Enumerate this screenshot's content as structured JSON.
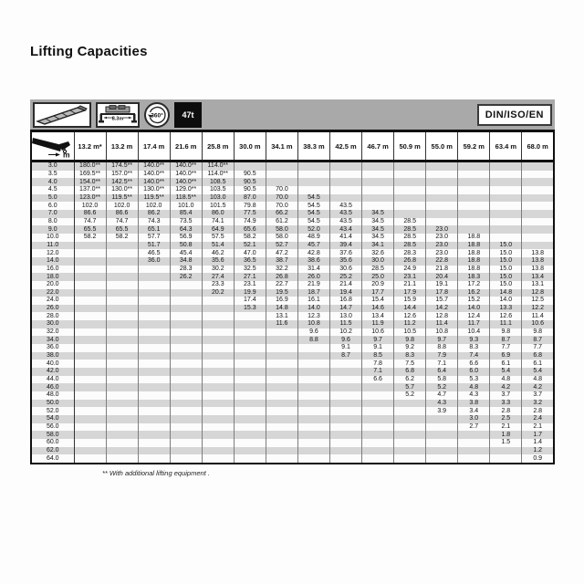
{
  "title": "Lifting Capacities",
  "standard_label": "DIN/ISO/EN",
  "icons": {
    "boom": "telescopic-boom-icon",
    "outriggers": "outriggers-icon",
    "outrigger_width_label": "8.3m",
    "rotation_label": "360°",
    "counterweight_label": "47t",
    "radius_icon": "boom-radius-icon"
  },
  "table": {
    "radius_unit": "m",
    "columns": [
      "13.2 m*",
      "13.2 m",
      "17.4 m",
      "21.6 m",
      "25.8 m",
      "30.0 m",
      "34.1 m",
      "38.3 m",
      "42.5 m",
      "46.7 m",
      "50.9 m",
      "55.0 m",
      "59.2 m",
      "63.4 m",
      "68.0 m"
    ],
    "rows": [
      {
        "radius": "3.0",
        "values": [
          "180.0**",
          "174.5**",
          "140.0**",
          "140.0**",
          "114.0**",
          "",
          "",
          "",
          "",
          "",
          "",
          "",
          "",
          "",
          ""
        ]
      },
      {
        "radius": "3.5",
        "values": [
          "169.5**",
          "157.0**",
          "140.0**",
          "140.0**",
          "114.0**",
          "90.5",
          "",
          "",
          "",
          "",
          "",
          "",
          "",
          "",
          ""
        ]
      },
      {
        "radius": "4.0",
        "values": [
          "154.0**",
          "142.5**",
          "140.0**",
          "140.0**",
          "108.5",
          "90.5",
          "",
          "",
          "",
          "",
          "",
          "",
          "",
          "",
          ""
        ]
      },
      {
        "radius": "4.5",
        "values": [
          "137.0**",
          "130.0**",
          "130.0**",
          "129.0**",
          "103.5",
          "90.5",
          "70.0",
          "",
          "",
          "",
          "",
          "",
          "",
          "",
          ""
        ]
      },
      {
        "radius": "5.0",
        "values": [
          "123.0**",
          "119.5**",
          "119.5**",
          "118.5**",
          "103.0",
          "87.0",
          "70.0",
          "54.5",
          "",
          "",
          "",
          "",
          "",
          "",
          ""
        ]
      },
      {
        "radius": "6.0",
        "values": [
          "102.0",
          "102.0",
          "102.0",
          "101.0",
          "101.5",
          "79.8",
          "70.0",
          "54.5",
          "43.5",
          "",
          "",
          "",
          "",
          "",
          ""
        ]
      },
      {
        "radius": "7.0",
        "values": [
          "86.6",
          "86.6",
          "86.2",
          "85.4",
          "86.0",
          "77.5",
          "66.2",
          "54.5",
          "43.5",
          "34.5",
          "",
          "",
          "",
          "",
          ""
        ]
      },
      {
        "radius": "8.0",
        "values": [
          "74.7",
          "74.7",
          "74.3",
          "73.5",
          "74.1",
          "74.9",
          "61.2",
          "54.5",
          "43.5",
          "34.5",
          "28.5",
          "",
          "",
          "",
          ""
        ]
      },
      {
        "radius": "9.0",
        "values": [
          "65.5",
          "65.5",
          "65.1",
          "64.3",
          "64.9",
          "65.6",
          "58.0",
          "52.0",
          "43.4",
          "34.5",
          "28.5",
          "23.0",
          "",
          "",
          ""
        ]
      },
      {
        "radius": "10.0",
        "values": [
          "58.2",
          "58.2",
          "57.7",
          "56.9",
          "57.5",
          "58.2",
          "58.0",
          "48.9",
          "41.4",
          "34.5",
          "28.5",
          "23.0",
          "18.8",
          "",
          ""
        ]
      },
      {
        "radius": "11.0",
        "values": [
          "",
          "",
          "51.7",
          "50.8",
          "51.4",
          "52.1",
          "52.7",
          "45.7",
          "39.4",
          "34.1",
          "28.5",
          "23.0",
          "18.8",
          "15.0",
          ""
        ]
      },
      {
        "radius": "12.0",
        "values": [
          "",
          "",
          "46.5",
          "45.4",
          "46.2",
          "47.0",
          "47.2",
          "42.8",
          "37.6",
          "32.6",
          "28.3",
          "23.0",
          "18.8",
          "15.0",
          "13.8"
        ]
      },
      {
        "radius": "14.0",
        "values": [
          "",
          "",
          "36.0",
          "34.8",
          "35.6",
          "36.5",
          "38.7",
          "38.6",
          "35.6",
          "30.0",
          "26.8",
          "22.8",
          "18.8",
          "15.0",
          "13.8"
        ]
      },
      {
        "radius": "16.0",
        "values": [
          "",
          "",
          "",
          "28.3",
          "30.2",
          "32.5",
          "32.2",
          "31.4",
          "30.6",
          "28.5",
          "24.9",
          "21.8",
          "18.8",
          "15.0",
          "13.8"
        ]
      },
      {
        "radius": "18.0",
        "values": [
          "",
          "",
          "",
          "26.2",
          "27.4",
          "27.1",
          "26.8",
          "26.0",
          "25.2",
          "25.0",
          "23.1",
          "20.4",
          "18.3",
          "15.0",
          "13.4"
        ]
      },
      {
        "radius": "20.0",
        "values": [
          "",
          "",
          "",
          "",
          "23.3",
          "23.1",
          "22.7",
          "21.9",
          "21.4",
          "20.9",
          "21.1",
          "19.1",
          "17.2",
          "15.0",
          "13.1"
        ]
      },
      {
        "radius": "22.0",
        "values": [
          "",
          "",
          "",
          "",
          "20.2",
          "19.9",
          "19.5",
          "18.7",
          "19.4",
          "17.7",
          "17.9",
          "17.8",
          "16.2",
          "14.8",
          "12.8"
        ]
      },
      {
        "radius": "24.0",
        "values": [
          "",
          "",
          "",
          "",
          "",
          "17.4",
          "16.9",
          "16.1",
          "16.8",
          "15.4",
          "15.9",
          "15.7",
          "15.2",
          "14.0",
          "12.5"
        ]
      },
      {
        "radius": "26.0",
        "values": [
          "",
          "",
          "",
          "",
          "",
          "15.3",
          "14.8",
          "14.0",
          "14.7",
          "14.6",
          "14.4",
          "14.2",
          "14.0",
          "13.3",
          "12.2"
        ]
      },
      {
        "radius": "28.0",
        "values": [
          "",
          "",
          "",
          "",
          "",
          "",
          "13.1",
          "12.3",
          "13.0",
          "13.4",
          "12.6",
          "12.8",
          "12.4",
          "12.6",
          "11.4"
        ]
      },
      {
        "radius": "30.0",
        "values": [
          "",
          "",
          "",
          "",
          "",
          "",
          "11.6",
          "10.8",
          "11.5",
          "11.9",
          "11.2",
          "11.4",
          "11.7",
          "11.1",
          "10.6"
        ]
      },
      {
        "radius": "32.0",
        "values": [
          "",
          "",
          "",
          "",
          "",
          "",
          "",
          "9.6",
          "10.2",
          "10.6",
          "10.5",
          "10.8",
          "10.4",
          "9.8",
          "9.8"
        ]
      },
      {
        "radius": "34.0",
        "values": [
          "",
          "",
          "",
          "",
          "",
          "",
          "",
          "8.8",
          "9.6",
          "9.7",
          "9.8",
          "9.7",
          "9.3",
          "8.7",
          "8.7"
        ]
      },
      {
        "radius": "36.0",
        "values": [
          "",
          "",
          "",
          "",
          "",
          "",
          "",
          "",
          "9.1",
          "9.1",
          "9.2",
          "8.8",
          "8.3",
          "7.7",
          "7.7"
        ]
      },
      {
        "radius": "38.0",
        "values": [
          "",
          "",
          "",
          "",
          "",
          "",
          "",
          "",
          "8.7",
          "8.5",
          "8.3",
          "7.9",
          "7.4",
          "6.9",
          "6.8"
        ]
      },
      {
        "radius": "40.0",
        "values": [
          "",
          "",
          "",
          "",
          "",
          "",
          "",
          "",
          "",
          "7.8",
          "7.5",
          "7.1",
          "6.6",
          "6.1",
          "6.1"
        ]
      },
      {
        "radius": "42.0",
        "values": [
          "",
          "",
          "",
          "",
          "",
          "",
          "",
          "",
          "",
          "7.1",
          "6.8",
          "6.4",
          "6.0",
          "5.4",
          "5.4"
        ]
      },
      {
        "radius": "44.0",
        "values": [
          "",
          "",
          "",
          "",
          "",
          "",
          "",
          "",
          "",
          "6.6",
          "6.2",
          "5.8",
          "5.3",
          "4.8",
          "4.8"
        ]
      },
      {
        "radius": "46.0",
        "values": [
          "",
          "",
          "",
          "",
          "",
          "",
          "",
          "",
          "",
          "",
          "5.7",
          "5.2",
          "4.8",
          "4.2",
          "4.2"
        ]
      },
      {
        "radius": "48.0",
        "values": [
          "",
          "",
          "",
          "",
          "",
          "",
          "",
          "",
          "",
          "",
          "5.2",
          "4.7",
          "4.3",
          "3.7",
          "3.7"
        ]
      },
      {
        "radius": "50.0",
        "values": [
          "",
          "",
          "",
          "",
          "",
          "",
          "",
          "",
          "",
          "",
          "",
          "4.3",
          "3.8",
          "3.3",
          "3.2"
        ]
      },
      {
        "radius": "52.0",
        "values": [
          "",
          "",
          "",
          "",
          "",
          "",
          "",
          "",
          "",
          "",
          "",
          "3.9",
          "3.4",
          "2.8",
          "2.8"
        ]
      },
      {
        "radius": "54.0",
        "values": [
          "",
          "",
          "",
          "",
          "",
          "",
          "",
          "",
          "",
          "",
          "",
          "",
          "3.0",
          "2.5",
          "2.4"
        ]
      },
      {
        "radius": "56.0",
        "values": [
          "",
          "",
          "",
          "",
          "",
          "",
          "",
          "",
          "",
          "",
          "",
          "",
          "2.7",
          "2.1",
          "2.1"
        ]
      },
      {
        "radius": "58.0",
        "values": [
          "",
          "",
          "",
          "",
          "",
          "",
          "",
          "",
          "",
          "",
          "",
          "",
          "",
          "1.8",
          "1.7"
        ]
      },
      {
        "radius": "60.0",
        "values": [
          "",
          "",
          "",
          "",
          "",
          "",
          "",
          "",
          "",
          "",
          "",
          "",
          "",
          "1.5",
          "1.4"
        ]
      },
      {
        "radius": "62.0",
        "values": [
          "",
          "",
          "",
          "",
          "",
          "",
          "",
          "",
          "",
          "",
          "",
          "",
          "",
          "",
          "1.2"
        ]
      },
      {
        "radius": "64.0",
        "values": [
          "",
          "",
          "",
          "",
          "",
          "",
          "",
          "",
          "",
          "",
          "",
          "",
          "",
          "",
          "0.9"
        ]
      }
    ]
  },
  "footnote": "** With additional lifting equipment ."
}
